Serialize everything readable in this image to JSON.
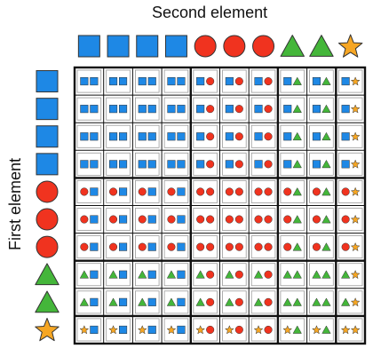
{
  "titles": {
    "second_element": "Second element",
    "first_element": "First element"
  },
  "colors": {
    "square": "#1e88e5",
    "circle": "#f0331f",
    "triangle": "#44b63a",
    "star": "#f6a623",
    "grid_line": "#111111",
    "cell_border": "#9a9a9a"
  },
  "elements": [
    {
      "shape": "square",
      "icon": "square-icon"
    },
    {
      "shape": "square",
      "icon": "square-icon"
    },
    {
      "shape": "square",
      "icon": "square-icon"
    },
    {
      "shape": "square",
      "icon": "square-icon"
    },
    {
      "shape": "circle",
      "icon": "circle-icon"
    },
    {
      "shape": "circle",
      "icon": "circle-icon"
    },
    {
      "shape": "circle",
      "icon": "circle-icon"
    },
    {
      "shape": "triangle",
      "icon": "triangle-icon"
    },
    {
      "shape": "triangle",
      "icon": "triangle-icon"
    },
    {
      "shape": "star",
      "icon": "star-icon"
    }
  ],
  "group_boundaries": [
    4,
    7,
    9
  ]
}
